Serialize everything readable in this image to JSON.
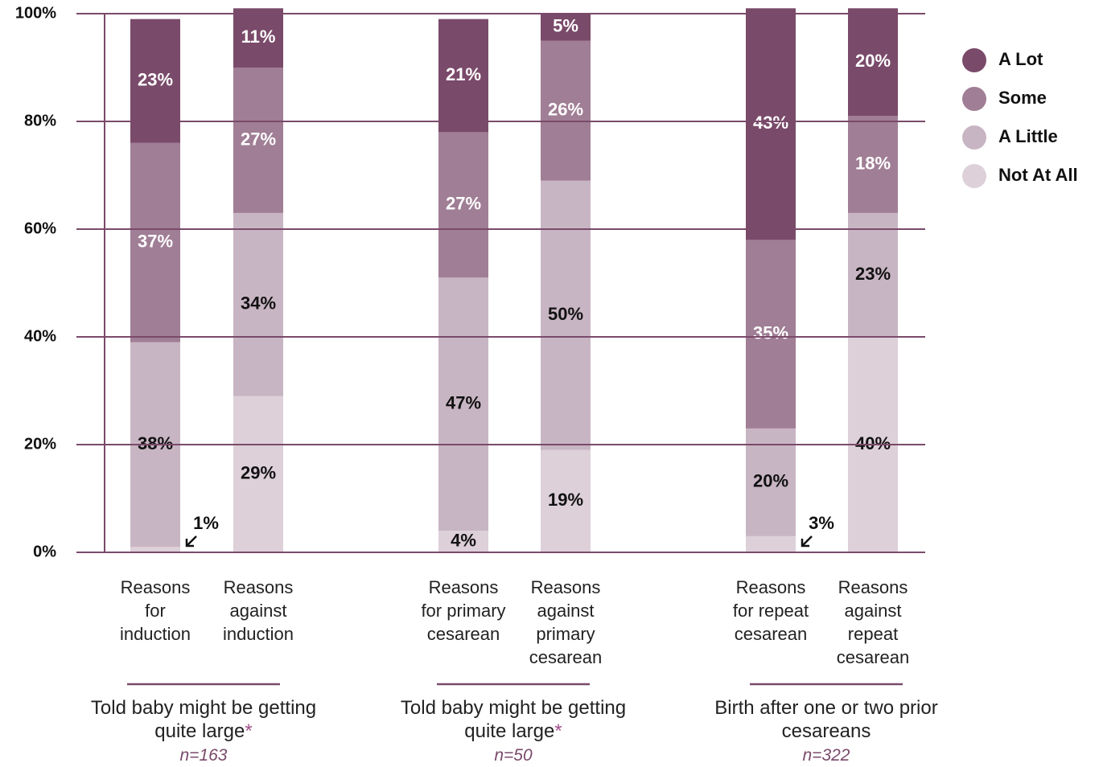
{
  "chart_data": {
    "type": "stacked_bar",
    "categories": [
      "Reasons for induction",
      "Reasons against induction",
      "Reasons for primary cesarean",
      "Reasons against primary cesarean",
      "Reasons for repeat cesarean",
      "Reasons against repeat cesarean"
    ],
    "groups": [
      {
        "label": "Told baby might be getting quite large",
        "note": "*",
        "n": "n=163"
      },
      {
        "label": "Told baby might be getting quite large",
        "note": "*",
        "n": "n=50"
      },
      {
        "label": "Birth after one or two prior cesareans",
        "n": "n=322"
      }
    ],
    "series": [
      {
        "name": "A Lot",
        "color": "#7a4a6a",
        "values": [
          23,
          11,
          21,
          5,
          43,
          20
        ],
        "value_labels": [
          "23%",
          "11%",
          "21%",
          "5%",
          "43%",
          "20%"
        ]
      },
      {
        "name": "Some",
        "color": "#a07e95",
        "values": [
          37,
          27,
          27,
          26,
          35,
          18
        ],
        "value_labels": [
          "37%",
          "27%",
          "27%",
          "26%",
          "35%",
          "18%"
        ]
      },
      {
        "name": "A Little",
        "color": "#c8b5c3",
        "values": [
          38,
          34,
          47,
          50,
          20,
          23
        ],
        "value_labels": [
          "38%",
          "34%",
          "47%",
          "50%",
          "20%",
          "23%"
        ]
      },
      {
        "name": "Not At All",
        "color": "#ddd0d9",
        "values": [
          1,
          29,
          4,
          19,
          3,
          40
        ],
        "value_labels": [
          "1%",
          "29%",
          "4%",
          "19%",
          "3%",
          "40%"
        ]
      }
    ],
    "ylim": [
      0,
      100
    ],
    "yticks": [
      {
        "value": 0,
        "label": "0%"
      },
      {
        "value": 20,
        "label": "20%"
      },
      {
        "value": 40,
        "label": "40%"
      },
      {
        "value": 60,
        "label": "60%"
      },
      {
        "value": 80,
        "label": "80%"
      },
      {
        "value": 100,
        "label": "100%"
      }
    ],
    "grid": true,
    "legend": "right"
  }
}
